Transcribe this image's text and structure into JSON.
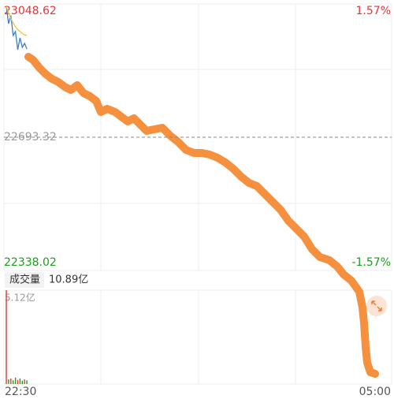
{
  "chart_data": {
    "type": "line",
    "ylim": [
      22338.02,
      23048.62
    ],
    "yticks": [
      23048.62,
      22693.32,
      22338.02
    ],
    "y2lim": [
      -1.57,
      1.57
    ],
    "y2ticks": [
      {
        "value": 1.57,
        "label": "1.57%"
      },
      {
        "value": -1.57,
        "label": "-1.57%"
      }
    ],
    "xticks": [
      "22:30",
      "05:00"
    ],
    "series": [
      {
        "color": "#3d7fc4",
        "values": [
          23042.3,
          22996.1,
          23017.1,
          22964.5,
          22975.0,
          22926.7,
          22958.2,
          22933.0,
          22943.5,
          22928.8
        ]
      },
      {
        "color": "#f0c040",
        "values": [
          23042.0,
          23025.0,
          23010.0,
          22998.0,
          22988.0,
          22980.0,
          22975.0,
          22970.0,
          22966.0,
          22965.0
        ]
      }
    ],
    "volume": {
      "label": "成交量",
      "total": "10.89亿",
      "ylim": [
        0,
        5.12
      ],
      "yticks": [
        {
          "value": 5.12,
          "label": "5.12亿"
        }
      ],
      "values": [
        5.12,
        0.25,
        0.3,
        0.2,
        0.35,
        0.22,
        0.3,
        0.18,
        0.25,
        0.2
      ],
      "colors": [
        "#e8333a",
        "#1a9e1a",
        "#e8333a",
        "#1a9e1a",
        "#1a9e1a",
        "#e8333a",
        "#1a9e1a",
        "#1a9e1a",
        "#e8333a",
        "#1a9e1a"
      ]
    }
  }
}
